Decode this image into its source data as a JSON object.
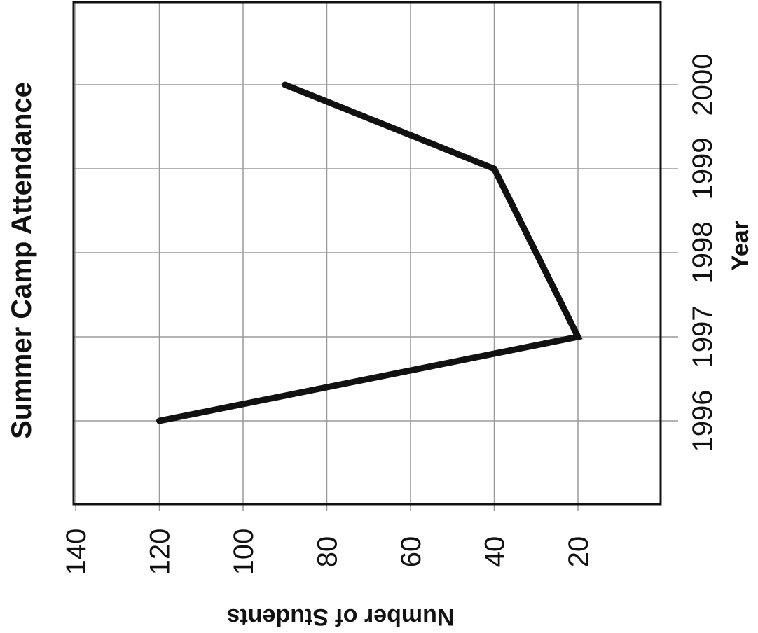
{
  "chart_data": {
    "type": "line",
    "orientation": "rotated-90-counterclockwise",
    "title": "Summer Camp Attendance",
    "xlabel": "Year",
    "ylabel": "Number of Students",
    "x": [
      "1996",
      "1997",
      "1998",
      "1999",
      "2000"
    ],
    "series": [
      {
        "values": [
          120,
          20,
          null,
          40,
          90
        ]
      }
    ],
    "y_ticks": [
      20,
      40,
      60,
      80,
      100,
      120,
      140
    ],
    "ylim": [
      10,
      140
    ],
    "grid": true,
    "legend": "none",
    "colors": {
      "line": "#111111",
      "grid": "#9a9a9a",
      "frame": "#111111"
    }
  }
}
